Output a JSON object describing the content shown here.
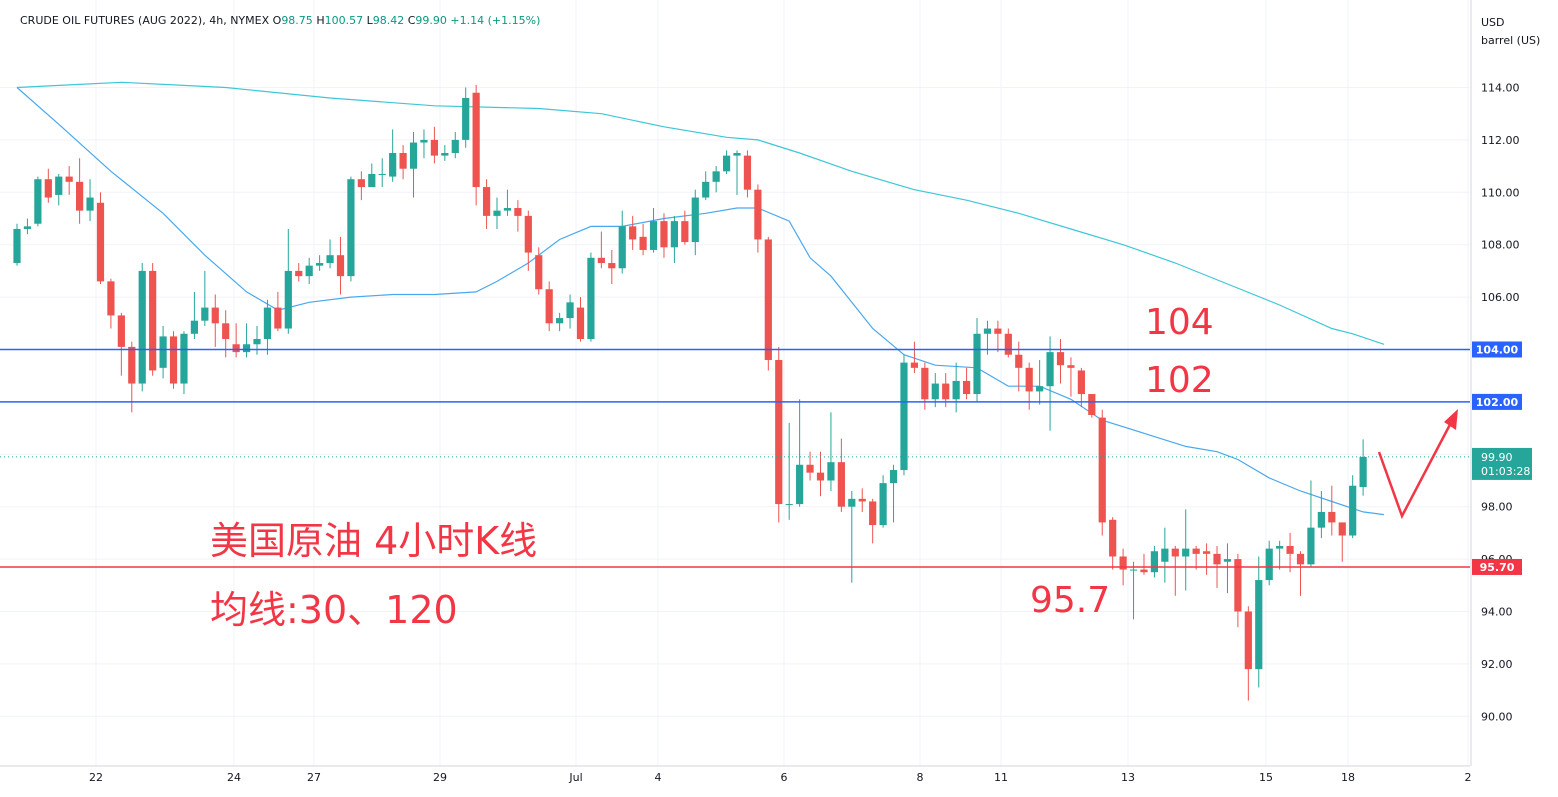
{
  "header": {
    "symbol": "CRUDE OIL FUTURES (AUG 2022)",
    "interval": "4h",
    "exchange": "NYMEX",
    "o_label": "O",
    "o_value": "98.75",
    "h_label": "H",
    "h_value": "100.57",
    "l_label": "L",
    "l_value": "98.42",
    "c_label": "C",
    "c_value": "99.90",
    "change": "+1.14 (+1.15%)"
  },
  "axis_units": {
    "currency": "USD",
    "unit": "barrel (US)"
  },
  "colors": {
    "up": "#26a69a",
    "down": "#ef5350",
    "ma_short": "#4aa8ef",
    "ma_long": "#3ec7d6",
    "hline_blue": "#2962ff",
    "hline_red": "#f23645",
    "annot_red": "#f23645",
    "grid": "#f0f3fa"
  },
  "annotations": {
    "title_line1": "美国原油 4小时K线",
    "title_line2": "均线:30、120",
    "label_104": "104",
    "label_102": "102",
    "label_957": "95.7"
  },
  "chart_data": {
    "type": "candlestick",
    "x_ticks": [
      "22",
      "24",
      "27",
      "29",
      "Jul",
      "4",
      "6",
      "8",
      "11",
      "13",
      "15",
      "18",
      "2"
    ],
    "y_ticks": [
      "90.00",
      "92.00",
      "94.00",
      "96.00",
      "98.00",
      "100.00",
      "102.00",
      "104.00",
      "106.00",
      "108.00",
      "110.00",
      "112.00",
      "114.00"
    ],
    "ylim": [
      89.4,
      116.3
    ],
    "horizontal_lines": [
      {
        "value": 104.0,
        "label": "104.00",
        "color": "blue"
      },
      {
        "value": 102.0,
        "label": "102.00",
        "color": "blue"
      },
      {
        "value": 95.7,
        "label": "95.70",
        "color": "red"
      }
    ],
    "last_price": {
      "value": 99.9,
      "label": "99.90",
      "countdown": "01:03:28"
    },
    "candles": [
      [
        107.3,
        108.6,
        108.8,
        107.2
      ],
      [
        108.6,
        108.7,
        109.0,
        108.4
      ],
      [
        108.8,
        110.5,
        110.6,
        108.7
      ],
      [
        110.5,
        109.8,
        110.9,
        109.6
      ],
      [
        109.9,
        110.6,
        110.7,
        109.5
      ],
      [
        110.6,
        110.4,
        111.0,
        109.9
      ],
      [
        110.4,
        109.3,
        111.3,
        108.8
      ],
      [
        109.3,
        109.8,
        110.5,
        108.9
      ],
      [
        109.6,
        106.6,
        110.0,
        106.5
      ],
      [
        106.6,
        105.3,
        106.7,
        104.8
      ],
      [
        105.3,
        104.1,
        105.4,
        103.0
      ],
      [
        104.1,
        102.7,
        104.3,
        101.6
      ],
      [
        102.7,
        107.0,
        107.3,
        102.4
      ],
      [
        107.0,
        103.2,
        107.3,
        103.0
      ],
      [
        103.3,
        104.5,
        104.9,
        102.9
      ],
      [
        104.5,
        102.7,
        104.7,
        102.5
      ],
      [
        102.7,
        104.6,
        104.7,
        102.3
      ],
      [
        104.6,
        105.1,
        106.2,
        104.4
      ],
      [
        105.1,
        105.6,
        107.0,
        104.9
      ],
      [
        105.6,
        105.0,
        106.1,
        104.1
      ],
      [
        105.0,
        104.4,
        105.5,
        103.7
      ],
      [
        104.2,
        103.9,
        105.0,
        103.7
      ],
      [
        103.9,
        104.2,
        105.0,
        103.7
      ],
      [
        104.2,
        104.4,
        104.9,
        103.8
      ],
      [
        104.4,
        105.6,
        105.9,
        103.8
      ],
      [
        105.6,
        104.8,
        106.2,
        104.7
      ],
      [
        104.8,
        107.0,
        108.6,
        104.6
      ],
      [
        107.0,
        106.8,
        107.3,
        106.6
      ],
      [
        106.8,
        107.2,
        107.5,
        106.5
      ],
      [
        107.2,
        107.3,
        107.6,
        107.0
      ],
      [
        107.3,
        107.6,
        108.2,
        107.1
      ],
      [
        107.6,
        106.8,
        108.3,
        106.1
      ],
      [
        106.8,
        110.5,
        110.6,
        106.6
      ],
      [
        110.5,
        110.2,
        110.8,
        109.7
      ],
      [
        110.2,
        110.7,
        111.1,
        110.2
      ],
      [
        110.7,
        110.7,
        111.3,
        110.2
      ],
      [
        110.6,
        111.5,
        112.4,
        110.4
      ],
      [
        111.5,
        110.9,
        111.8,
        110.5
      ],
      [
        110.9,
        111.9,
        112.3,
        109.8
      ],
      [
        111.9,
        112.0,
        112.4,
        111.3
      ],
      [
        112.0,
        111.4,
        112.5,
        111.1
      ],
      [
        111.4,
        111.5,
        111.8,
        111.2
      ],
      [
        111.5,
        112.0,
        112.3,
        111.3
      ],
      [
        112.0,
        113.6,
        114.0,
        111.7
      ],
      [
        113.8,
        110.2,
        114.1,
        109.5
      ],
      [
        110.2,
        109.1,
        110.5,
        108.6
      ],
      [
        109.1,
        109.3,
        109.8,
        108.6
      ],
      [
        109.3,
        109.4,
        110.1,
        109.1
      ],
      [
        109.4,
        109.1,
        109.7,
        108.5
      ],
      [
        109.1,
        107.7,
        109.3,
        107.0
      ],
      [
        107.6,
        106.3,
        107.9,
        106.1
      ],
      [
        106.3,
        105.0,
        106.6,
        104.7
      ],
      [
        105.0,
        105.2,
        105.4,
        104.7
      ],
      [
        105.2,
        105.8,
        106.1,
        104.8
      ],
      [
        105.6,
        104.4,
        106.0,
        104.3
      ],
      [
        104.4,
        107.5,
        107.7,
        104.3
      ],
      [
        107.5,
        107.3,
        108.5,
        107.1
      ],
      [
        107.3,
        107.1,
        107.8,
        106.5
      ],
      [
        107.1,
        108.7,
        109.3,
        106.9
      ],
      [
        108.7,
        108.2,
        109.1,
        107.8
      ],
      [
        108.3,
        107.8,
        108.8,
        107.6
      ],
      [
        107.8,
        108.9,
        109.4,
        107.7
      ],
      [
        108.9,
        107.9,
        109.2,
        107.5
      ],
      [
        107.9,
        108.9,
        109.1,
        107.3
      ],
      [
        108.9,
        108.1,
        109.3,
        108.0
      ],
      [
        108.1,
        109.8,
        110.1,
        107.6
      ],
      [
        109.8,
        110.4,
        110.8,
        109.7
      ],
      [
        110.4,
        110.8,
        111.0,
        110.0
      ],
      [
        110.8,
        111.4,
        111.6,
        110.7
      ],
      [
        111.4,
        111.5,
        111.6,
        109.9
      ],
      [
        111.4,
        110.1,
        111.6,
        109.8
      ],
      [
        110.1,
        108.2,
        110.3,
        107.7
      ],
      [
        108.2,
        103.6,
        108.3,
        103.2
      ],
      [
        103.6,
        98.1,
        104.1,
        97.4
      ],
      [
        98.1,
        98.1,
        101.2,
        97.5
      ],
      [
        98.1,
        99.6,
        102.1,
        98.0
      ],
      [
        99.6,
        99.3,
        100.1,
        99.0
      ],
      [
        99.3,
        99.0,
        100.1,
        98.4
      ],
      [
        99.0,
        99.7,
        101.6,
        98.6
      ],
      [
        99.7,
        98.0,
        100.6,
        97.8
      ],
      [
        98.0,
        98.3,
        98.6,
        95.1
      ],
      [
        98.3,
        98.2,
        98.7,
        97.8
      ],
      [
        98.2,
        97.3,
        98.3,
        96.6
      ],
      [
        97.3,
        98.9,
        99.2,
        97.2
      ],
      [
        98.9,
        99.4,
        99.6,
        97.4
      ],
      [
        99.4,
        103.5,
        103.8,
        99.2
      ],
      [
        103.5,
        103.3,
        104.3,
        103.1
      ],
      [
        103.3,
        102.1,
        103.5,
        101.7
      ],
      [
        102.1,
        102.7,
        103.1,
        101.8
      ],
      [
        102.7,
        102.1,
        103.1,
        101.8
      ],
      [
        102.1,
        102.8,
        103.5,
        101.6
      ],
      [
        102.8,
        102.3,
        103.3,
        102.1
      ],
      [
        102.3,
        104.6,
        105.2,
        102.0
      ],
      [
        104.6,
        104.8,
        105.1,
        103.8
      ],
      [
        104.8,
        104.6,
        105.1,
        103.9
      ],
      [
        104.6,
        103.8,
        104.8,
        103.7
      ],
      [
        103.8,
        103.3,
        104.3,
        102.4
      ],
      [
        103.3,
        102.4,
        103.5,
        101.7
      ],
      [
        102.4,
        102.6,
        103.6,
        101.9
      ],
      [
        102.6,
        103.9,
        104.5,
        100.9
      ],
      [
        103.9,
        103.4,
        104.4,
        102.7
      ],
      [
        103.4,
        103.3,
        103.7,
        102.2
      ],
      [
        103.2,
        102.3,
        103.3,
        101.8
      ],
      [
        102.3,
        101.5,
        102.1,
        101.4
      ],
      [
        101.4,
        97.4,
        101.7,
        96.9
      ],
      [
        97.5,
        96.1,
        97.6,
        95.6
      ],
      [
        96.1,
        95.6,
        96.4,
        95.0
      ],
      [
        95.6,
        95.6,
        95.9,
        93.7
      ],
      [
        95.6,
        95.5,
        96.2,
        95.4
      ],
      [
        95.5,
        96.3,
        96.5,
        95.3
      ],
      [
        95.9,
        96.4,
        97.2,
        95.1
      ],
      [
        96.4,
        96.1,
        96.5,
        94.6
      ],
      [
        96.1,
        96.4,
        97.9,
        94.8
      ],
      [
        96.4,
        96.2,
        96.5,
        95.6
      ],
      [
        96.3,
        96.2,
        96.6,
        95.4
      ],
      [
        96.2,
        95.8,
        96.5,
        94.9
      ],
      [
        95.9,
        96.0,
        96.6,
        94.7
      ],
      [
        96.0,
        94.0,
        96.2,
        93.4
      ],
      [
        94.0,
        91.8,
        94.2,
        90.6
      ],
      [
        91.8,
        95.2,
        96.1,
        91.1
      ],
      [
        95.2,
        96.4,
        96.7,
        95.0
      ],
      [
        96.4,
        96.5,
        96.7,
        95.6
      ],
      [
        96.5,
        96.2,
        97.0,
        95.5
      ],
      [
        96.2,
        95.8,
        96.3,
        94.6
      ],
      [
        95.8,
        97.2,
        99.0,
        95.7
      ],
      [
        97.2,
        97.8,
        98.6,
        96.8
      ],
      [
        97.8,
        97.4,
        98.8,
        96.9
      ],
      [
        97.4,
        96.9,
        97.4,
        95.9
      ],
      [
        96.9,
        98.8,
        99.2,
        96.8
      ],
      [
        98.75,
        99.9,
        100.57,
        98.42
      ]
    ],
    "ma30": [
      [
        0,
        114.0
      ],
      [
        4,
        112.6
      ],
      [
        9,
        110.8
      ],
      [
        14,
        109.2
      ],
      [
        18,
        107.6
      ],
      [
        22,
        106.2
      ],
      [
        25,
        105.5
      ],
      [
        28,
        105.8
      ],
      [
        32,
        106.0
      ],
      [
        36,
        106.1
      ],
      [
        40,
        106.1
      ],
      [
        44,
        106.2
      ],
      [
        46,
        106.6
      ],
      [
        49,
        107.3
      ],
      [
        52,
        108.2
      ],
      [
        55,
        108.7
      ],
      [
        58,
        108.7
      ],
      [
        62,
        109.0
      ],
      [
        66,
        109.2
      ],
      [
        69,
        109.4
      ],
      [
        71,
        109.4
      ],
      [
        74,
        108.9
      ],
      [
        76,
        107.5
      ],
      [
        78,
        106.8
      ],
      [
        82,
        104.8
      ],
      [
        85,
        103.8
      ],
      [
        88,
        103.4
      ],
      [
        92,
        103.3
      ],
      [
        95,
        102.6
      ],
      [
        98,
        102.6
      ],
      [
        101,
        102.1
      ],
      [
        104,
        101.3
      ],
      [
        108,
        100.8
      ],
      [
        112,
        100.3
      ],
      [
        115,
        100.1
      ],
      [
        117,
        99.8
      ],
      [
        120,
        99.1
      ],
      [
        123,
        98.6
      ],
      [
        126,
        98.2
      ],
      [
        129,
        97.8
      ],
      [
        131,
        97.7
      ]
    ],
    "ma120": [
      [
        0,
        114.0
      ],
      [
        5,
        114.1
      ],
      [
        10,
        114.2
      ],
      [
        15,
        114.1
      ],
      [
        20,
        114.0
      ],
      [
        30,
        113.6
      ],
      [
        40,
        113.3
      ],
      [
        50,
        113.2
      ],
      [
        56,
        113.0
      ],
      [
        62,
        112.5
      ],
      [
        68,
        112.1
      ],
      [
        71,
        112.0
      ],
      [
        75,
        111.5
      ],
      [
        80,
        110.8
      ],
      [
        86,
        110.1
      ],
      [
        91,
        109.7
      ],
      [
        96,
        109.2
      ],
      [
        101,
        108.6
      ],
      [
        106,
        108.0
      ],
      [
        111,
        107.3
      ],
      [
        116,
        106.5
      ],
      [
        121,
        105.7
      ],
      [
        126,
        104.8
      ],
      [
        128,
        104.6
      ],
      [
        131,
        104.2
      ]
    ]
  }
}
